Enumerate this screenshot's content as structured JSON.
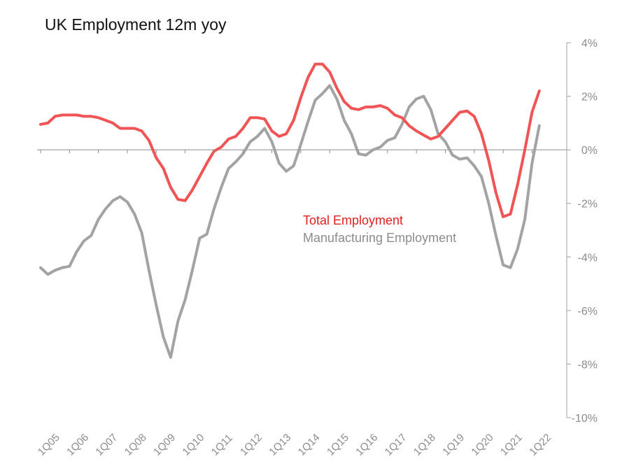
{
  "chart_data": {
    "type": "line",
    "title": "UK Employment 12m yoy",
    "ylim": [
      -10,
      4
    ],
    "y_ticks": [
      "4%",
      "2%",
      "0%",
      "-2%",
      "-4%",
      "-6%",
      "-8%",
      "-10%"
    ],
    "y_tick_values": [
      4,
      2,
      0,
      -2,
      -4,
      -6,
      -8,
      -10
    ],
    "x_ticks": [
      "1Q05",
      "1Q06",
      "1Q07",
      "1Q08",
      "1Q09",
      "1Q10",
      "1Q11",
      "1Q12",
      "1Q13",
      "1Q14",
      "1Q15",
      "1Q16",
      "1Q17",
      "1Q18",
      "1Q19",
      "1Q20",
      "1Q21",
      "1Q22"
    ],
    "legend_position": "center",
    "grid": false,
    "x": [
      "1Q05",
      "2Q05",
      "3Q05",
      "4Q05",
      "1Q06",
      "2Q06",
      "3Q06",
      "4Q06",
      "1Q07",
      "2Q07",
      "3Q07",
      "4Q07",
      "1Q08",
      "2Q08",
      "3Q08",
      "4Q08",
      "1Q09",
      "2Q09",
      "3Q09",
      "4Q09",
      "1Q10",
      "2Q10",
      "3Q10",
      "4Q10",
      "1Q11",
      "2Q11",
      "3Q11",
      "4Q11",
      "1Q12",
      "2Q12",
      "3Q12",
      "4Q12",
      "1Q13",
      "2Q13",
      "3Q13",
      "4Q13",
      "1Q14",
      "2Q14",
      "3Q14",
      "4Q14",
      "1Q15",
      "2Q15",
      "3Q15",
      "4Q15",
      "1Q16",
      "2Q16",
      "3Q16",
      "4Q16",
      "1Q17",
      "2Q17",
      "3Q17",
      "4Q17",
      "1Q18",
      "2Q18",
      "3Q18",
      "4Q18",
      "1Q19",
      "2Q19",
      "3Q19",
      "4Q19",
      "1Q20",
      "2Q20",
      "3Q20",
      "4Q20",
      "1Q21",
      "2Q21",
      "3Q21",
      "4Q21",
      "1Q22",
      "2Q22",
      "3Q22"
    ],
    "series": [
      {
        "name": "Total Employment",
        "color": "#f05454",
        "values": [
          0.95,
          1.0,
          1.25,
          1.3,
          1.3,
          1.3,
          1.25,
          1.25,
          1.2,
          1.1,
          1.0,
          0.8,
          0.8,
          0.8,
          0.7,
          0.35,
          -0.3,
          -0.7,
          -1.4,
          -1.85,
          -1.9,
          -1.5,
          -1.0,
          -0.5,
          -0.05,
          0.1,
          0.4,
          0.5,
          0.8,
          1.2,
          1.2,
          1.15,
          0.7,
          0.5,
          0.6,
          1.1,
          1.95,
          2.7,
          3.2,
          3.2,
          2.9,
          2.3,
          1.8,
          1.55,
          1.5,
          1.6,
          1.6,
          1.65,
          1.55,
          1.3,
          1.2,
          0.9,
          0.7,
          0.55,
          0.4,
          0.5,
          0.8,
          1.1,
          1.4,
          1.45,
          1.25,
          0.6,
          -0.4,
          -1.6,
          -2.5,
          -2.4,
          -1.3,
          0.0,
          1.4,
          2.2,
          null
        ]
      },
      {
        "name": "Manufacturing Employment",
        "color": "#a3a3a3",
        "values": [
          -4.4,
          -4.65,
          -4.5,
          -4.4,
          -4.35,
          -3.8,
          -3.4,
          -3.2,
          -2.6,
          -2.2,
          -1.9,
          -1.75,
          -1.95,
          -2.4,
          -3.1,
          -4.5,
          -5.8,
          -7.0,
          -7.75,
          -6.4,
          -5.6,
          -4.5,
          -3.3,
          -3.15,
          -2.2,
          -1.4,
          -0.7,
          -0.45,
          -0.15,
          0.3,
          0.5,
          0.8,
          0.3,
          -0.5,
          -0.8,
          -0.6,
          0.2,
          1.05,
          1.85,
          2.1,
          2.4,
          1.9,
          1.1,
          0.6,
          -0.15,
          -0.2,
          0.0,
          0.1,
          0.35,
          0.45,
          0.95,
          1.6,
          1.9,
          2.0,
          1.5,
          0.6,
          0.3,
          -0.2,
          -0.35,
          -0.3,
          -0.6,
          -1.0,
          -2.0,
          -3.2,
          -4.3,
          -4.4,
          -3.7,
          -2.6,
          -0.5,
          0.9,
          null
        ]
      }
    ]
  }
}
